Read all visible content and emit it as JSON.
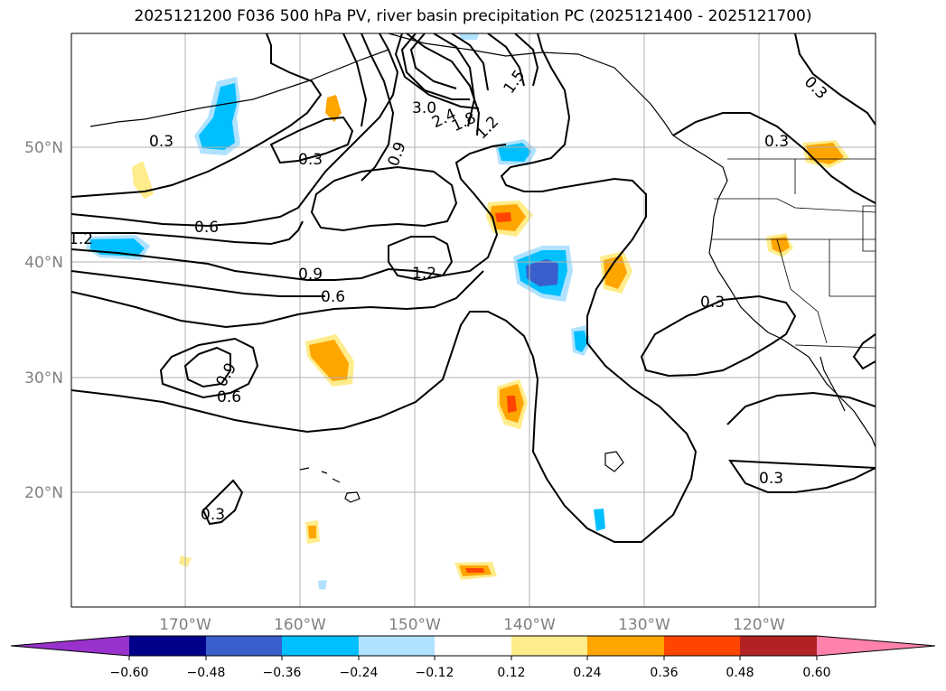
{
  "title": "2025121200 F036 500 hPa PV, river basin precipitation PC (2025121400 - 2025121700)",
  "map": {
    "lat_labels": [
      "50°N",
      "40°N",
      "30°N",
      "20°N"
    ],
    "lon_labels": [
      "170°W",
      "160°W",
      "150°W",
      "140°W",
      "130°W",
      "120°W"
    ]
  },
  "contour_labels": [
    "0.3",
    "0.3",
    "0.3",
    "0.3",
    "0.3",
    "0.3",
    "0.3",
    "0.6",
    "0.6",
    "0.6",
    "0.9",
    "0.9",
    "0.9",
    "1.2",
    "1.2",
    "1.2",
    "1.5",
    "1.8",
    "2.4",
    "3.0"
  ],
  "colorbar": {
    "ticks": [
      "−0.60",
      "−0.48",
      "−0.36",
      "−0.24",
      "−0.12",
      "0.12",
      "0.24",
      "0.36",
      "0.48",
      "0.60"
    ],
    "colors": [
      "#9932cc",
      "#00008b",
      "#3a5fcd",
      "#00bfff",
      "#b0e2ff",
      "#ffffff",
      "#ffec8b",
      "#ffa500",
      "#ff4500",
      "#b22222",
      "#ff82ab"
    ]
  }
}
